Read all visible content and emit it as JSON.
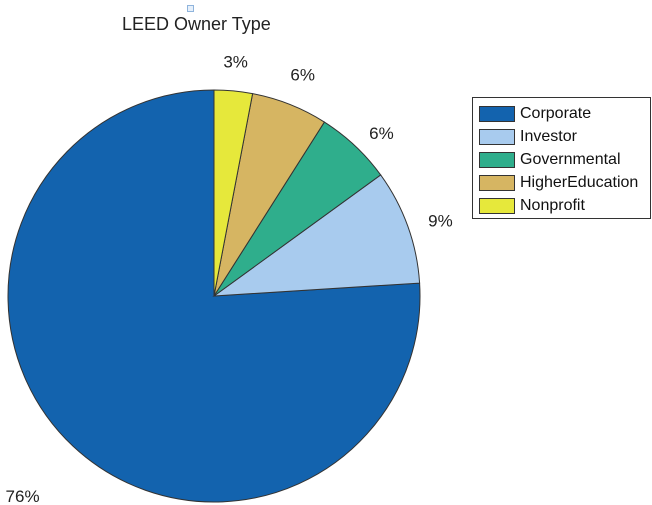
{
  "chart_data": {
    "type": "pie",
    "title": "LEED Owner Type",
    "slices": [
      {
        "label": "Corporate",
        "value": 76,
        "display": "76%",
        "color": "#1363ae"
      },
      {
        "label": "Investor",
        "value": 9,
        "display": "9%",
        "color": "#a8cbee"
      },
      {
        "label": "Governmental",
        "value": 6,
        "display": "6%",
        "color": "#2fae8c"
      },
      {
        "label": "HigherEducation",
        "value": 6,
        "display": "6%",
        "color": "#d6b562"
      },
      {
        "label": "Nonprofit",
        "value": 3,
        "display": "3%",
        "color": "#e6e83b"
      }
    ],
    "start": "top",
    "direction": "counterclockwise",
    "legend_position": "right"
  }
}
